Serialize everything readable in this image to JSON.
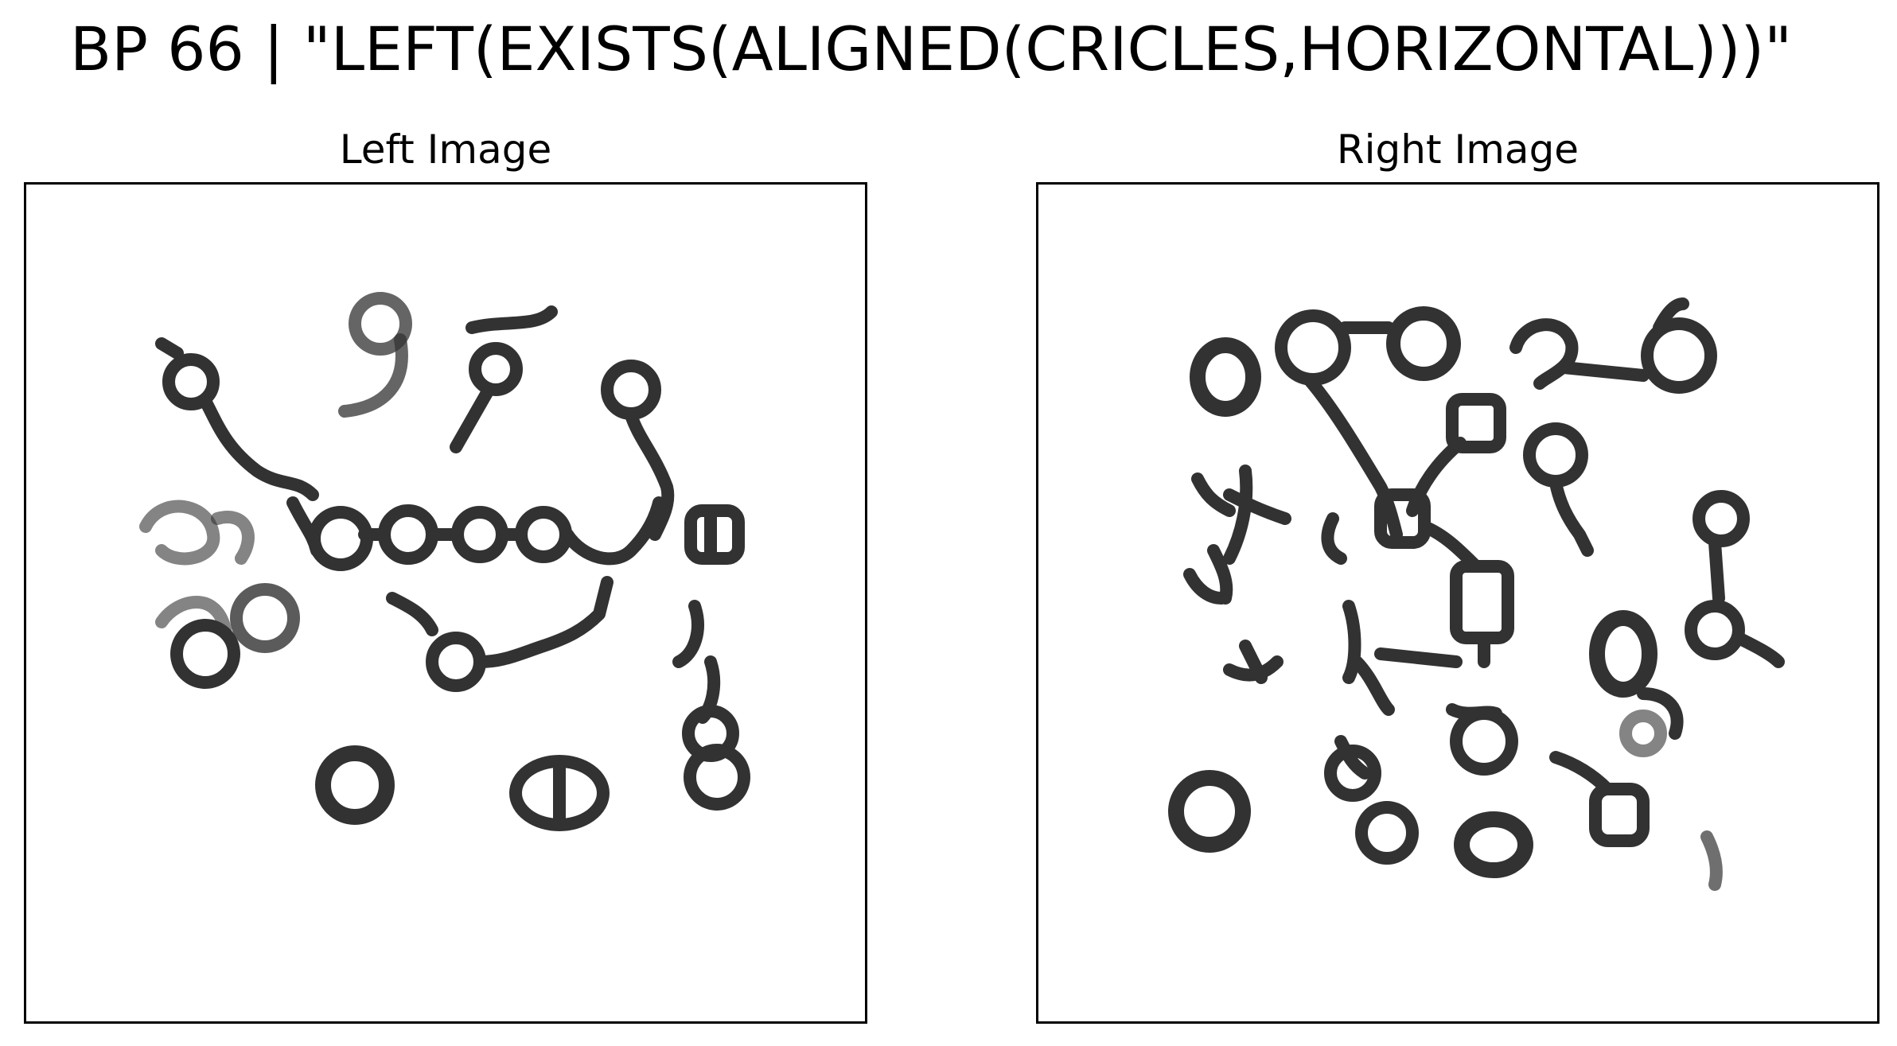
{
  "title": "BP 66 | \"LEFT(EXISTS(ALIGNED(CRICLES,HORIZONTAL)))\"",
  "panels": {
    "left": {
      "label": "Left Image"
    },
    "right": {
      "label": "Right Image"
    }
  },
  "colors": {
    "ink": "#1c1c1c",
    "frame": "#000000",
    "background": "#ffffff"
  }
}
